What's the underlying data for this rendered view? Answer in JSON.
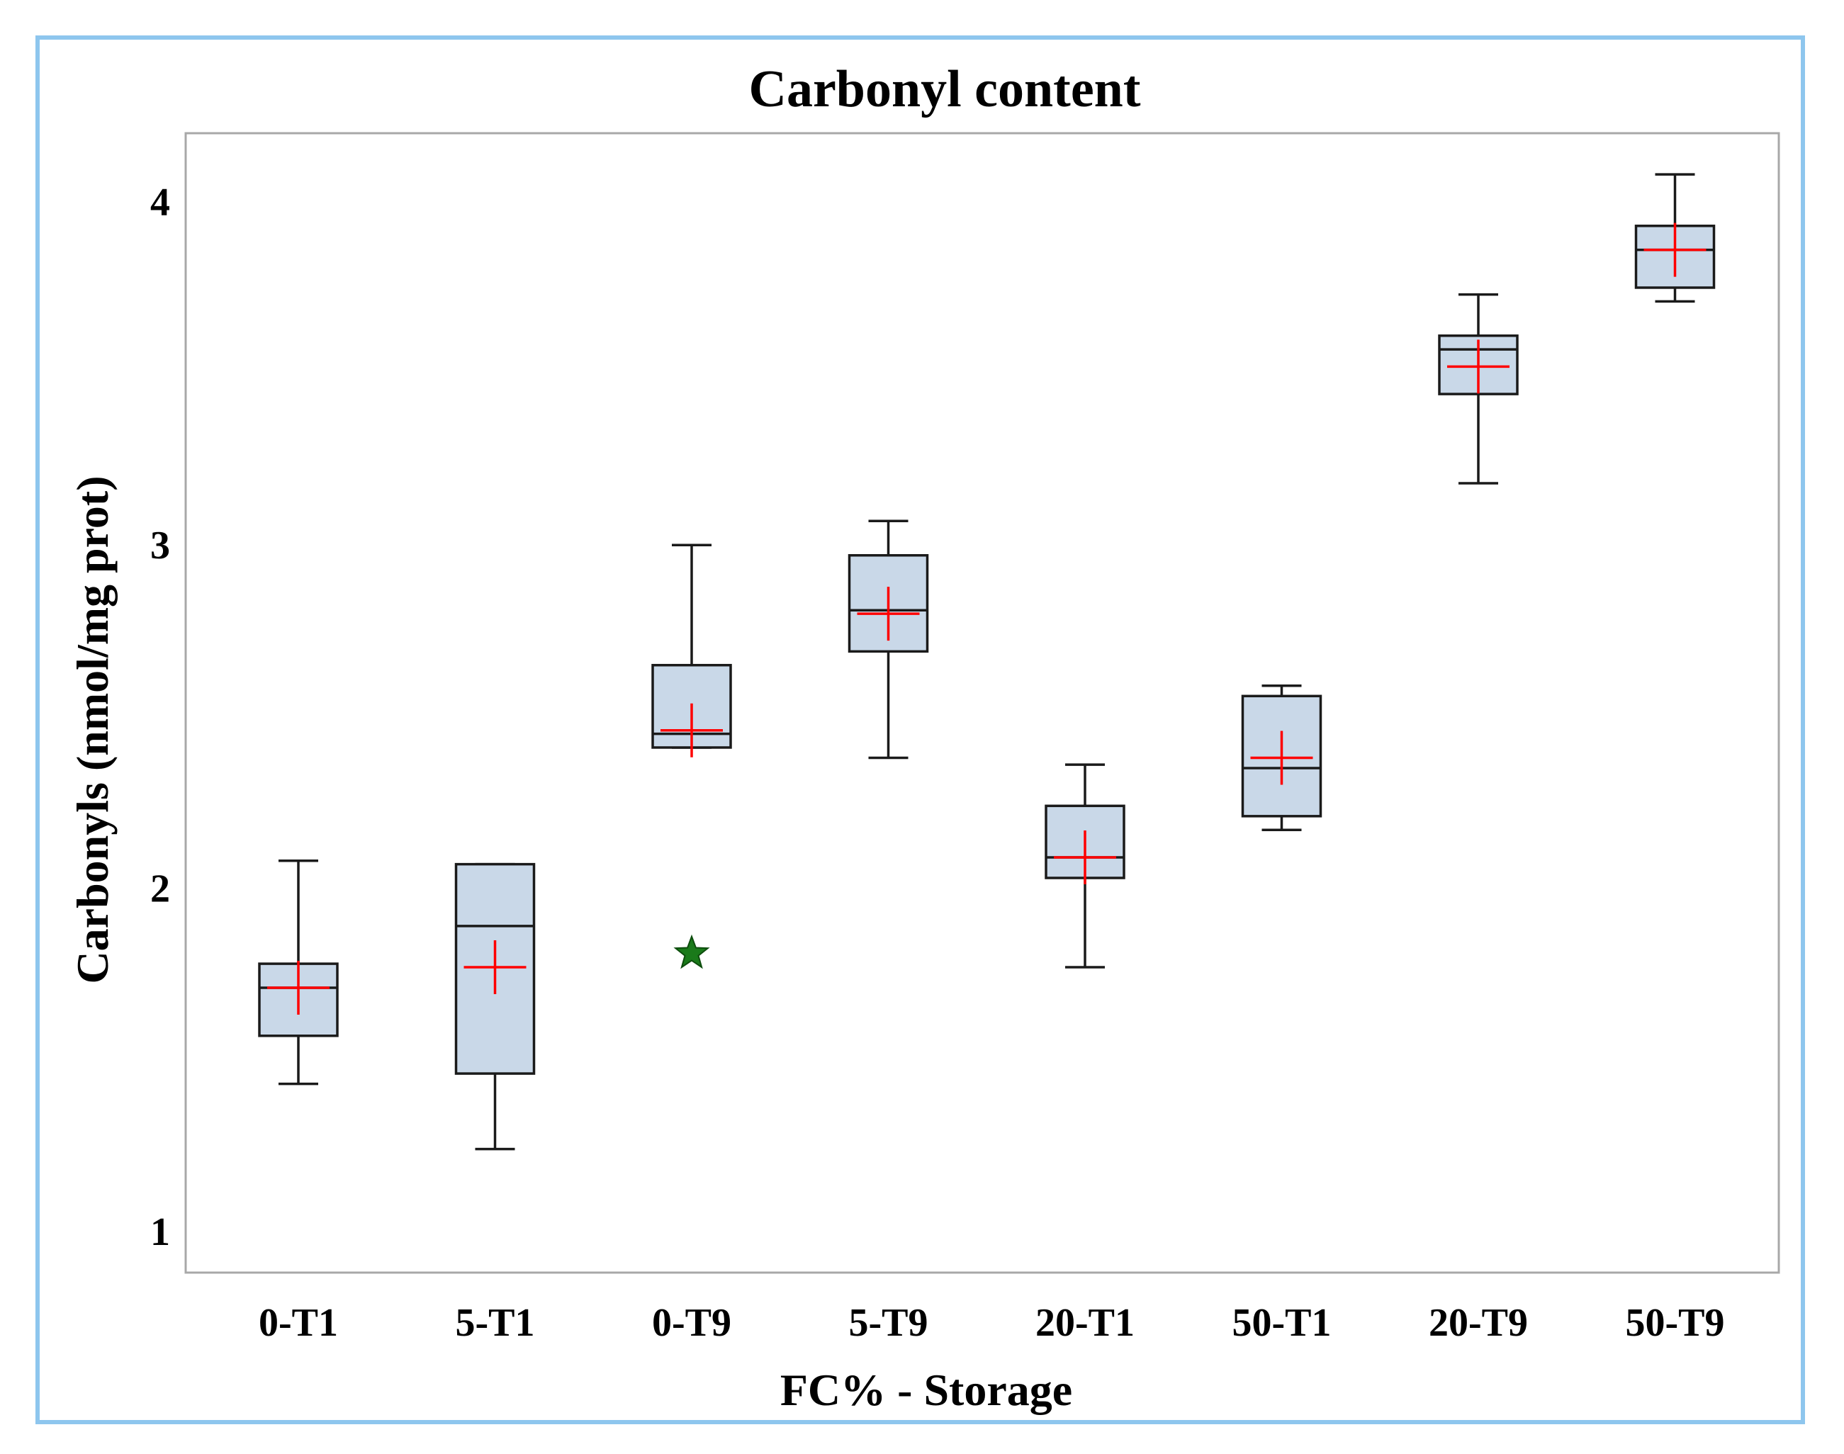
{
  "chart_data": {
    "type": "box",
    "title": "Carbonyl content",
    "xlabel": "FC% - Storage",
    "ylabel": "Carbonyls (nmol/mg prot)",
    "ylim": [
      0.88,
      4.2
    ],
    "yticks": [
      "1",
      "2",
      "3",
      "4"
    ],
    "categories": [
      "0-T1",
      "5-T1",
      "0-T9",
      "5-T9",
      "20-T1",
      "50-T1",
      "20-T9",
      "50-T9"
    ],
    "boxes": [
      {
        "category": "0-T1",
        "whisker_low": 1.43,
        "q1": 1.57,
        "median": 1.71,
        "q3": 1.78,
        "whisker_high": 2.08,
        "mean": 1.71
      },
      {
        "category": "5-T1",
        "whisker_low": 1.24,
        "q1": 1.46,
        "median": 1.89,
        "q3": 2.07,
        "whisker_high": 2.07,
        "mean": 1.77
      },
      {
        "category": "0-T9",
        "whisker_low": 2.41,
        "q1": 2.41,
        "median": 2.45,
        "q3": 2.65,
        "whisker_high": 3.0,
        "mean": 2.46
      },
      {
        "category": "5-T9",
        "whisker_low": 2.38,
        "q1": 2.69,
        "median": 2.81,
        "q3": 2.97,
        "whisker_high": 3.07,
        "mean": 2.8
      },
      {
        "category": "20-T1",
        "whisker_low": 1.77,
        "q1": 2.03,
        "median": 2.09,
        "q3": 2.24,
        "whisker_high": 2.36,
        "mean": 2.09
      },
      {
        "category": "50-T1",
        "whisker_low": 2.17,
        "q1": 2.21,
        "median": 2.35,
        "q3": 2.56,
        "whisker_high": 2.59,
        "mean": 2.38
      },
      {
        "category": "20-T9",
        "whisker_low": 3.18,
        "q1": 3.44,
        "median": 3.57,
        "q3": 3.61,
        "whisker_high": 3.73,
        "mean": 3.52
      },
      {
        "category": "50-T9",
        "whisker_low": 3.71,
        "q1": 3.75,
        "median": 3.86,
        "q3": 3.93,
        "whisker_high": 4.08,
        "mean": 3.86
      }
    ],
    "outliers": [
      {
        "category": "0-T9",
        "value": 1.81
      }
    ],
    "grid": false,
    "colors": {
      "box_fill": "#c9d8e8",
      "box_stroke": "#1a1a1a",
      "mean_marker": "#ff0000",
      "outlier_marker": "#1a7a1a",
      "frame_border": "#8ec6ee",
      "plot_border": "#a8a8a8"
    }
  }
}
